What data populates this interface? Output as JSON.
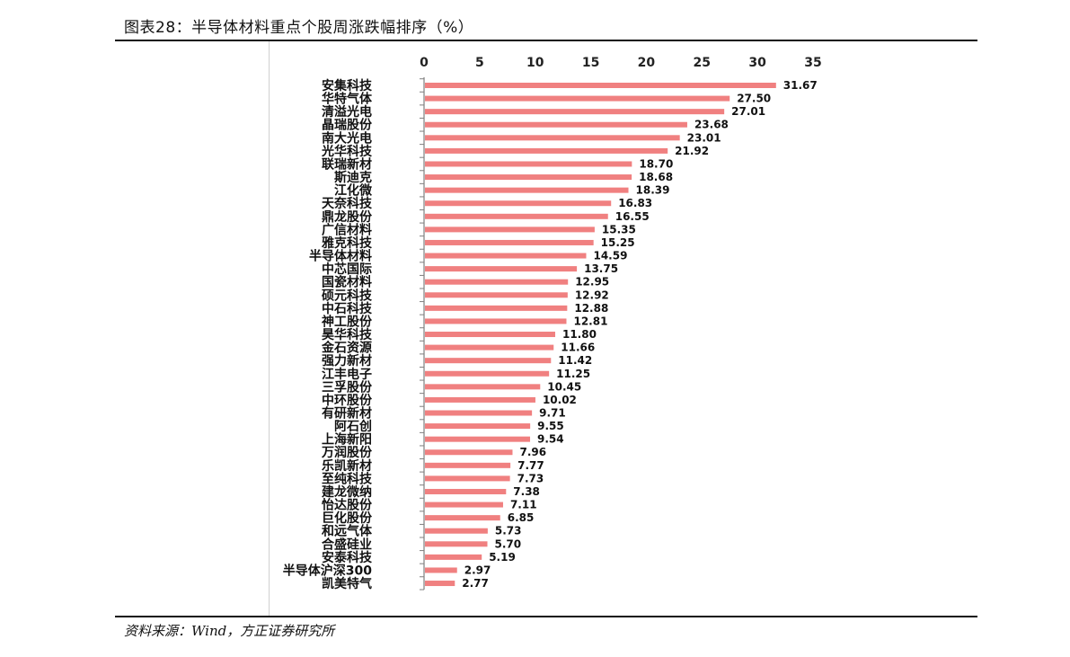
{
  "figure": {
    "title": "图表28：半导体材料重点个股周涨跌幅排序（%）",
    "source": "资料来源：Wind，方正证券研究所"
  },
  "chart_data": {
    "type": "bar",
    "orientation": "horizontal",
    "title": "",
    "xlabel": "",
    "ylabel": "",
    "xlim": [
      0,
      35
    ],
    "xticks": [
      0,
      5,
      10,
      15,
      20,
      25,
      30,
      35
    ],
    "x_axis_position": "top",
    "grid": false,
    "bar_color": "#f08080",
    "categories": [
      "安集科技",
      "华特气体",
      "清溢光电",
      "晶瑞股份",
      "南大光电",
      "光华科技",
      "联瑞新材",
      "斯迪克",
      "江化微",
      "天奈科技",
      "鼎龙股份",
      "广信材料",
      "雅克科技",
      "半导体材料",
      "中芯国际",
      "国瓷材料",
      "硕元科技",
      "中石科技",
      "神工股份",
      "昊华科技",
      "金石资源",
      "强力新材",
      "江丰电子",
      "三孚股份",
      "中环股份",
      "有研新材",
      "阿石创",
      "上海新阳",
      "万润股份",
      "乐凯新材",
      "至纯科技",
      "建龙微纳",
      "怡达股份",
      "巨化股份",
      "和远气体",
      "合盛硅业",
      "安泰科技",
      "半导体沪深300",
      "凯美特气"
    ],
    "values": [
      31.67,
      27.5,
      27.01,
      23.68,
      23.01,
      21.92,
      18.7,
      18.68,
      18.39,
      16.83,
      16.55,
      15.35,
      15.25,
      14.59,
      13.75,
      12.95,
      12.92,
      12.88,
      12.81,
      11.8,
      11.66,
      11.42,
      11.25,
      10.45,
      10.02,
      9.71,
      9.55,
      9.54,
      7.96,
      7.77,
      7.73,
      7.38,
      7.11,
      6.85,
      5.73,
      5.7,
      5.19,
      2.97,
      2.77
    ],
    "value_labels": [
      "31.67",
      "27.50",
      "27.01",
      "23.68",
      "23.01",
      "21.92",
      "18.70",
      "18.68",
      "18.39",
      "16.83",
      "16.55",
      "15.35",
      "15.25",
      "14.59",
      "13.75",
      "12.95",
      "12.92",
      "12.88",
      "12.81",
      "11.80",
      "11.66",
      "11.42",
      "11.25",
      "10.45",
      "10.02",
      "9.71",
      "9.55",
      "9.54",
      "7.96",
      "7.77",
      "7.73",
      "7.38",
      "7.11",
      "6.85",
      "5.73",
      "5.70",
      "5.19",
      "2.97",
      "2.77"
    ]
  }
}
